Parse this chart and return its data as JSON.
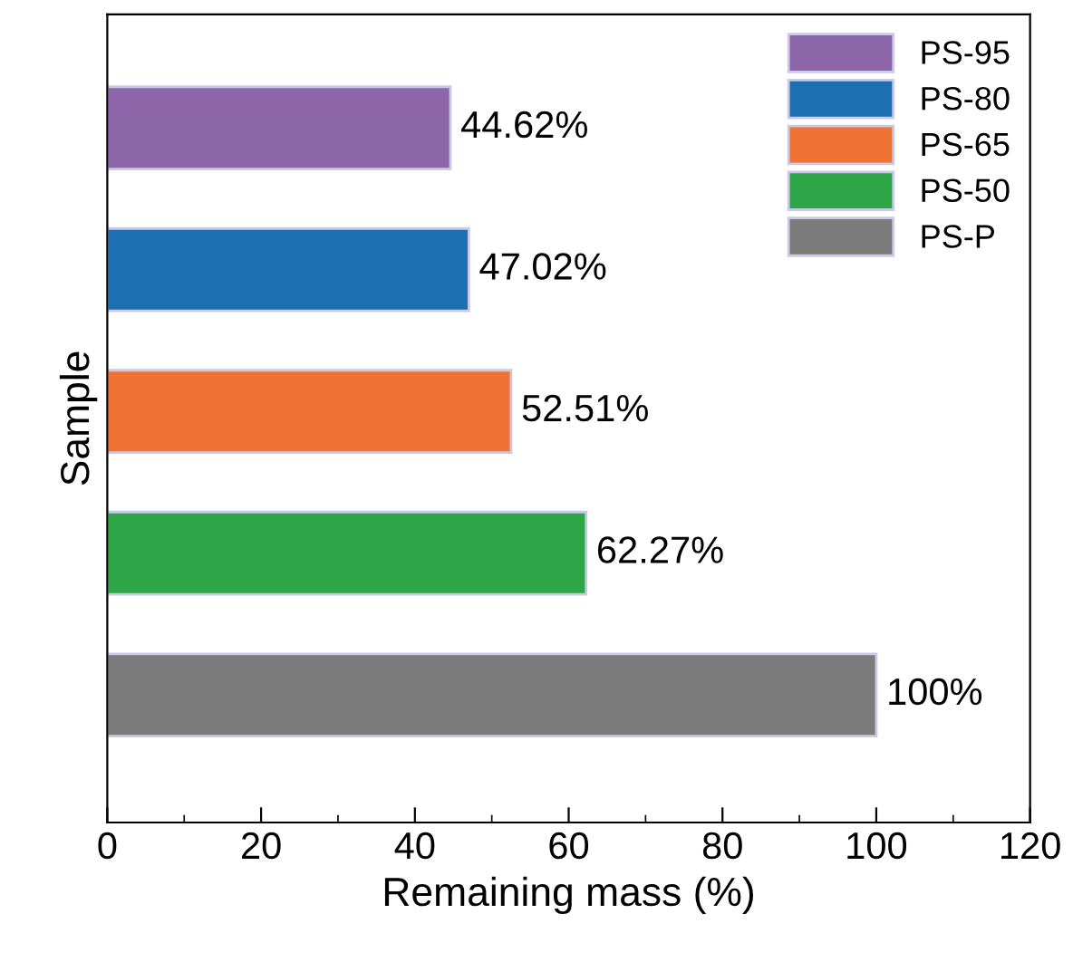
{
  "chart_data": {
    "type": "bar",
    "orientation": "horizontal",
    "categories": [
      null,
      null,
      null,
      null,
      null
    ],
    "series": [
      {
        "name": "PS-95",
        "color": "#8c66a8",
        "values": [
          44.62,
          null,
          null,
          null,
          null
        ]
      },
      {
        "name": "PS-80",
        "color": "#1e6fb2",
        "values": [
          null,
          47.02,
          null,
          null,
          null
        ]
      },
      {
        "name": "PS-65",
        "color": "#f07232",
        "values": [
          null,
          null,
          52.51,
          null,
          null
        ]
      },
      {
        "name": "PS-50",
        "color": "#2ca646",
        "values": [
          null,
          null,
          null,
          62.27,
          null
        ]
      },
      {
        "name": "PS-P",
        "color": "#7b7b7b",
        "values": [
          null,
          null,
          null,
          null,
          100
        ]
      }
    ],
    "value_labels": [
      "44.62%",
      "47.02%",
      "52.51%",
      "62.27%",
      "100%"
    ],
    "xlabel": "Remaining mass (%)",
    "ylabel": "Sample",
    "xlim": [
      0,
      120
    ],
    "xticks": [
      0,
      20,
      40,
      60,
      80,
      100,
      120
    ],
    "legend": "top right",
    "grid": false
  }
}
